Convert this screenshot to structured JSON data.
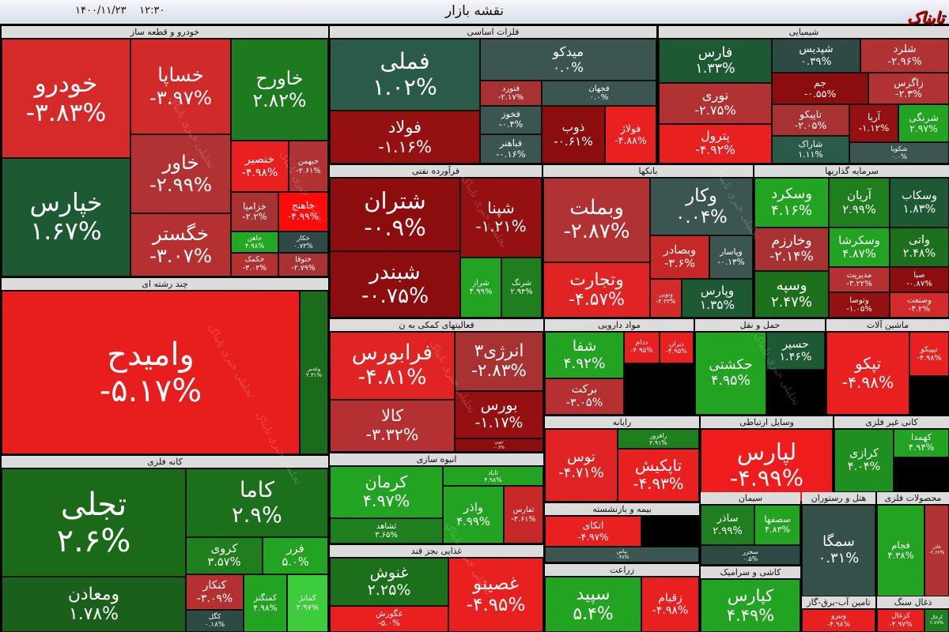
{
  "header": {
    "title": "نقشه بازار",
    "date": "۱۴۰۰/۱۱/۲۳",
    "time": "۱۲:۳۰",
    "logo": "تابناک"
  },
  "watermark": "تحلیلی خبری تابناک",
  "sectors": [
    {
      "name": "خودرو و قطعه ساز",
      "tiles": [
        {
          "name": "خودرو",
          "change": "-۳.۸۳%",
          "color": "#d42a2a"
        },
        {
          "name": "خپارس",
          "change": "۱.۶۷%",
          "color": "#1d5a33"
        },
        {
          "name": "خساپا",
          "change": "-۳.۹۷%",
          "color": "#d12a2a"
        },
        {
          "name": "خاور",
          "change": "-۲.۹۹%",
          "color": "#b03232"
        },
        {
          "name": "خگستر",
          "change": "-۳.۰۷%",
          "color": "#b53030"
        },
        {
          "name": "خاورح",
          "change": "۲.۸۲%",
          "color": "#1e7a1e"
        },
        {
          "name": "خنصیر",
          "change": "-۴.۹۸%",
          "color": "#e82020"
        },
        {
          "name": "خبهمن",
          "change": "-۲.۶۱%",
          "color": "#b03232"
        },
        {
          "name": "خزامیا",
          "change": "-۲.۲%",
          "color": "#a83232"
        },
        {
          "name": "خاهنج",
          "change": "-۴.۹۹%",
          "color": "#ff0a0a"
        },
        {
          "name": "خاهن",
          "change": "۴.۹۸%",
          "color": "#22a822"
        },
        {
          "name": "خکار",
          "change": "۰.۷۳%",
          "color": "#2e4a44"
        },
        {
          "name": "خکمک",
          "change": "-۳.۰۲%",
          "color": "#b53030"
        },
        {
          "name": "ختوقا",
          "change": "-۲.۷۹%",
          "color": "#a83232"
        }
      ]
    },
    {
      "name": "چند رشته ای",
      "tiles": [
        {
          "name": "وامیدح",
          "change": "-۵.۱۷%",
          "color": "#e81e1e"
        },
        {
          "name": "وغدیر",
          "change": "۲.۳۱%",
          "color": "#1c6a1c"
        }
      ]
    },
    {
      "name": "کانه فلزی",
      "tiles": [
        {
          "name": "تجلی",
          "change": "۲.۶%",
          "color": "#1a6a1a"
        },
        {
          "name": "ومعادن",
          "change": "۱.۷۸%",
          "color": "#1a601a"
        },
        {
          "name": "کاما",
          "change": "۲.۹%",
          "color": "#1c701c"
        },
        {
          "name": "کروی",
          "change": "۳.۵۷%",
          "color": "#1f7f1f"
        },
        {
          "name": "فزر",
          "change": "۵.۰%",
          "color": "#22a322"
        },
        {
          "name": "کنکار",
          "change": "-۳.۰۹%",
          "color": "#b53030"
        },
        {
          "name": "کگل",
          "change": "۰.۱۸%",
          "color": "#2e4a44"
        },
        {
          "name": "کمنگنز",
          "change": "۴.۹۸%",
          "color": "#22a322"
        },
        {
          "name": "کمانژ",
          "change": "۲.۹۷%",
          "color": "#3ccc3c"
        }
      ]
    },
    {
      "name": "فلزات اساسی",
      "tiles": [
        {
          "name": "فملی",
          "change": "۱.۰۲%",
          "color": "#2a5a48"
        },
        {
          "name": "فولاد",
          "change": "-۱.۱۶%",
          "color": "#951010"
        },
        {
          "name": "میدکو",
          "change": "۰.۰%",
          "color": "#3b5550"
        },
        {
          "name": "فنورد",
          "change": "-۲.۱۷%",
          "color": "#a83232"
        },
        {
          "name": "فجهان",
          "change": "۰.۰%",
          "color": "#3b5550"
        },
        {
          "name": "فخوز",
          "change": "-۰.۴%",
          "color": "#3b5550"
        },
        {
          "name": "ذوب",
          "change": "-۰.۶۱%",
          "color": "#8c0d0d"
        },
        {
          "name": "فولاژ",
          "change": "-۴.۸۸%",
          "color": "#e82020"
        },
        {
          "name": "فباهنر",
          "change": "-۰.۱۶%",
          "color": "#3b5550"
        }
      ]
    },
    {
      "name": "شیمیایی",
      "tiles": [
        {
          "name": "فارس",
          "change": "۱.۳۳%",
          "color": "#1d5a33"
        },
        {
          "name": "نوری",
          "change": "-۲.۷۵%",
          "color": "#b03232"
        },
        {
          "name": "پترول",
          "change": "-۴.۹۲%",
          "color": "#e82020"
        },
        {
          "name": "شپدیس",
          "change": "۰.۳۹%",
          "color": "#2e4a44"
        },
        {
          "name": "شلرد",
          "change": "-۲.۹۶%",
          "color": "#b03232"
        },
        {
          "name": "جم",
          "change": "-۰.۵۵%",
          "color": "#8c0d0d"
        },
        {
          "name": "زاگرس",
          "change": "-۲.۳%",
          "color": "#b03232"
        },
        {
          "name": "تاپیکو",
          "change": "-۲.۰۵%",
          "color": "#a83232"
        },
        {
          "name": "آریا",
          "change": "-۱.۱۲%",
          "color": "#951010"
        },
        {
          "name": "شرنگی",
          "change": "۲.۹۷%",
          "color": "#22a322"
        },
        {
          "name": "شاراک",
          "change": "۱.۱۱%",
          "color": "#2a5a48"
        },
        {
          "name": "شکویا",
          "change": "۰.۰%",
          "color": "#3b5550"
        }
      ]
    },
    {
      "name": "فرآورده نفتی",
      "tiles": [
        {
          "name": "شتران",
          "change": "-۰.۹%",
          "color": "#8c0d0d"
        },
        {
          "name": "شبندر",
          "change": "-۰.۷۵%",
          "color": "#8c0d0d"
        },
        {
          "name": "شپنا",
          "change": "-۱.۲۱%",
          "color": "#951010"
        },
        {
          "name": "شراز",
          "change": "۴.۹۹%",
          "color": "#22a322"
        },
        {
          "name": "شرنگ",
          "change": "۲.۹۴%",
          "color": "#1f7f1f"
        }
      ]
    },
    {
      "name": "بانکها",
      "tiles": [
        {
          "name": "وبملت",
          "change": "-۲.۸۷%",
          "color": "#b03232"
        },
        {
          "name": "وتجارت",
          "change": "-۴.۵۷%",
          "color": "#e02424"
        },
        {
          "name": "وکار",
          "change": "۰.۰۴%",
          "color": "#3b5550"
        },
        {
          "name": "وبصادر",
          "change": "-۳.۶%",
          "color": "#c62828"
        },
        {
          "name": "وپاسار",
          "change": "-۰.۱۳%",
          "color": "#3b5550"
        },
        {
          "name": "ونوین",
          "change": "-۴.۳۳%",
          "color": "#d42a2a"
        },
        {
          "name": "وپارس",
          "change": "۱.۳۵%",
          "color": "#1d5a33"
        }
      ]
    },
    {
      "name": "سرمایه گذاریها",
      "tiles": [
        {
          "name": "وسکرد",
          "change": "۴.۱۶%",
          "color": "#22a322"
        },
        {
          "name": "آریان",
          "change": "۲.۹۹%",
          "color": "#1f7f1f"
        },
        {
          "name": "وسکاب",
          "change": "۱.۸۳%",
          "color": "#1d5a33"
        },
        {
          "name": "وخارزم",
          "change": "-۲.۱۴%",
          "color": "#a83232"
        },
        {
          "name": "وسکرشا",
          "change": "۴.۸۷%",
          "color": "#22a322"
        },
        {
          "name": "واتی",
          "change": "۲.۴۸%",
          "color": "#1c701c"
        },
        {
          "name": "وسپه",
          "change": "۲.۴۷%",
          "color": "#1c701c"
        },
        {
          "name": "مدیریت",
          "change": "-۳.۲۲%",
          "color": "#b53030"
        },
        {
          "name": "صبا",
          "change": "-۰.۸۷%",
          "color": "#8c0d0d"
        },
        {
          "name": "وتوصا",
          "change": "-۱.۰۵%",
          "color": "#951010"
        },
        {
          "name": "وصنعت",
          "change": "-۴.۲%",
          "color": "#d42a2a"
        }
      ]
    },
    {
      "name": "فعالیتهای کمکی به ن",
      "tiles": [
        {
          "name": "فرابورس",
          "change": "-۴.۸۱%",
          "color": "#e02424"
        },
        {
          "name": "کالا",
          "change": "-۳.۳۲%",
          "color": "#b53030"
        },
        {
          "name": "انرژی۳",
          "change": "-۲.۸۳%",
          "color": "#a83232"
        },
        {
          "name": "بورس",
          "change": "-۱.۱۷%",
          "color": "#951010"
        },
        {
          "name": "تنوین",
          "change": "-۰.۳%",
          "color": "#8c0d0d"
        }
      ]
    },
    {
      "name": "مواد دارویی",
      "tiles": [
        {
          "name": "شفا",
          "change": "۴.۹۲%",
          "color": "#22a322"
        },
        {
          "name": "برکت",
          "change": "-۳.۰۵%",
          "color": "#b53030"
        },
        {
          "name": "ددام",
          "change": "-۴.۹۵%",
          "color": "#e82020"
        },
        {
          "name": "دیران",
          "change": "-۴.۹۵%",
          "color": "#e82020"
        }
      ]
    },
    {
      "name": "حمل و نقل",
      "tiles": [
        {
          "name": "حکشتی",
          "change": "۴.۹۵%",
          "color": "#22a322"
        },
        {
          "name": "حسیر",
          "change": "۱.۴۶%",
          "color": "#1d5a33"
        }
      ]
    },
    {
      "name": "ماشین آلات",
      "tiles": [
        {
          "name": "تپکو",
          "change": "-۴.۹۸%",
          "color": "#e82020"
        },
        {
          "name": "تیپیکو",
          "change": "-۴.۹۸%",
          "color": "#e82020"
        }
      ]
    },
    {
      "name": "رایانه",
      "tiles": [
        {
          "name": "توس",
          "change": "-۴.۷۱%",
          "color": "#e02424"
        },
        {
          "name": "رافزور",
          "change": "۲.۹۱%",
          "color": "#1f7f1f"
        },
        {
          "name": "تاپکیش",
          "change": "-۴.۹۳%",
          "color": "#e82020"
        }
      ]
    },
    {
      "name": "وسایل ارتباطی",
      "tiles": [
        {
          "name": "لپارس",
          "change": "-۴.۹۹%",
          "color": "#ee1c1c"
        }
      ]
    },
    {
      "name": "کانی غیر فلزی",
      "tiles": [
        {
          "name": "کرازی",
          "change": "۴.۰۴%",
          "color": "#1f8f1f"
        },
        {
          "name": "کهمدا",
          "change": "۴.۹۴%",
          "color": "#22a322"
        }
      ]
    },
    {
      "name": "انبوه سازی",
      "tiles": [
        {
          "name": "کرمان",
          "change": "۴.۹۷%",
          "color": "#22a322"
        },
        {
          "name": "ثشاهد",
          "change": "۳.۶۵%",
          "color": "#1f7f1f"
        },
        {
          "name": "ثاباد",
          "change": "۴.۹۸%",
          "color": "#22a322"
        },
        {
          "name": "واذر",
          "change": "۴.۹۹%",
          "color": "#22a322"
        },
        {
          "name": "ثفارس",
          "change": "-۳.۶۱%",
          "color": "#c62828"
        }
      ]
    },
    {
      "name": "غذایی بجز قند",
      "tiles": [
        {
          "name": "غنوش",
          "change": "۲.۲۵%",
          "color": "#1c701c"
        },
        {
          "name": "غگورش",
          "change": "-۵.۰%",
          "color": "#e82020"
        },
        {
          "name": "غصینو",
          "change": "-۴.۹۵%",
          "color": "#e82020"
        }
      ]
    },
    {
      "name": "بیمه و بازنشسته",
      "tiles": [
        {
          "name": "اتکای",
          "change": "-۴.۹۷%",
          "color": "#e82020"
        },
        {
          "name": "بپاس",
          "change": "۰.۴۸%",
          "color": "#3b5550"
        }
      ]
    },
    {
      "name": "زراعت",
      "tiles": [
        {
          "name": "سپید",
          "change": "۵.۴%",
          "color": "#22a322"
        },
        {
          "name": "زقیام",
          "change": "-۴.۹۸%",
          "color": "#e82020"
        }
      ]
    },
    {
      "name": "سیمان",
      "tiles": [
        {
          "name": "ساذر",
          "change": "۲.۹۹%",
          "color": "#1f7f1f"
        },
        {
          "name": "سصفها",
          "change": "۴.۸۳%",
          "color": "#22a322"
        },
        {
          "name": "سخزر",
          "change": "۰.۵%",
          "color": "#2e4a44"
        }
      ]
    },
    {
      "name": "هتل و رستوران",
      "tiles": [
        {
          "name": "سمگا",
          "change": "۰.۳۱%",
          "color": "#35504a"
        }
      ]
    },
    {
      "name": "محصولات فلزی",
      "tiles": [
        {
          "name": "فجام",
          "change": "۴.۳۸%",
          "color": "#22a322"
        },
        {
          "name": "فاذر",
          "change": "-۲.۶۶%",
          "color": "#b03232"
        }
      ]
    },
    {
      "name": "کاشی و سرامیک",
      "tiles": [
        {
          "name": "کپارس",
          "change": "۴.۴۹%",
          "color": "#22a322"
        }
      ]
    },
    {
      "name": "تامین آب-برق-گاز",
      "tiles": [
        {
          "name": "ونیرو",
          "change": "-۴.۹۸%",
          "color": "#e82020"
        }
      ]
    },
    {
      "name": "ذغال سنگ",
      "tiles": [
        {
          "name": "کزغال",
          "change": "-۴.۹۷%",
          "color": "#e82020"
        },
        {
          "name": "کرغال",
          "change": "۲.۷۷%",
          "color": "#1f7f1f"
        }
      ]
    }
  ]
}
